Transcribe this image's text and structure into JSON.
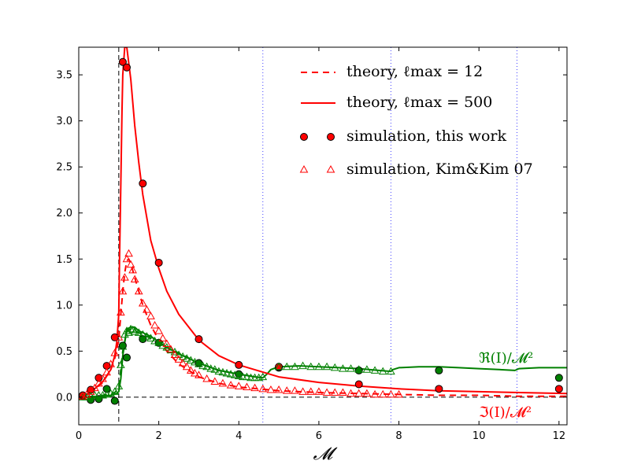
{
  "chart_data": {
    "type": "line",
    "xlabel": "𝓜",
    "ylabel": "",
    "xlim": [
      0,
      12.2
    ],
    "ylim": [
      -0.3,
      3.8
    ],
    "xticks": [
      "0",
      "2",
      "4",
      "6",
      "8",
      "10",
      "12"
    ],
    "xtick_values": [
      0,
      2,
      4,
      6,
      8,
      10,
      12
    ],
    "yticks": [
      "0.0",
      "0.5",
      "1.0",
      "1.5",
      "2.0",
      "2.5",
      "3.0",
      "3.5"
    ],
    "ytick_values": [
      0.0,
      0.5,
      1.0,
      1.5,
      2.0,
      2.5,
      3.0,
      3.5
    ],
    "reference_lines": {
      "vertical_dashed": 1.0,
      "horizontal_dashed": 0.0,
      "vertical_dotted": [
        4.6,
        7.8,
        10.95
      ]
    },
    "legend": {
      "placement": "top-right",
      "entries": [
        {
          "key": "theory_l12",
          "label": "theory, ℓmax = 12",
          "style": "dashed-line",
          "color": "#ff0000"
        },
        {
          "key": "theory_l500",
          "label": "theory, ℓmax = 500",
          "style": "solid-line",
          "color": "#ff0000"
        },
        {
          "key": "sim_this",
          "label": "simulation, this work",
          "style": "circle",
          "color": "#ff0000"
        },
        {
          "key": "sim_kim",
          "label": "simulation, Kim&Kim 07",
          "style": "triangle",
          "color": "#ff0000"
        }
      ]
    },
    "annotations": [
      {
        "text": "ℜ(I)/𝓜²",
        "color": "#008000",
        "x": 10.95,
        "y": 0.42
      },
      {
        "text": "ℑ(I)/𝓜²",
        "color": "#ff0000",
        "x": 10.95,
        "y": -0.18
      }
    ],
    "series": [
      {
        "name": "Re theory l500",
        "color": "#008000",
        "style": "solid",
        "x": [
          0,
          0.3,
          0.6,
          0.8,
          0.95,
          1.0,
          1.05,
          1.1,
          1.2,
          1.3,
          1.4,
          1.5,
          1.6,
          1.8,
          2.0,
          2.2,
          2.5,
          3.0,
          3.5,
          4.0,
          4.4,
          4.6,
          4.7,
          4.8,
          5.0,
          5.5,
          6.0,
          6.5,
          7.0,
          7.5,
          7.8,
          7.85,
          8.0,
          8.5,
          9.0,
          9.5,
          10.0,
          10.5,
          10.9,
          11.0,
          11.5,
          12.2
        ],
        "y": [
          0.0,
          0.0,
          0.01,
          0.02,
          0.04,
          0.06,
          0.2,
          0.45,
          0.74,
          0.76,
          0.76,
          0.72,
          0.7,
          0.66,
          0.6,
          0.54,
          0.47,
          0.37,
          0.29,
          0.25,
          0.22,
          0.21,
          0.25,
          0.3,
          0.33,
          0.34,
          0.33,
          0.32,
          0.31,
          0.29,
          0.28,
          0.3,
          0.32,
          0.33,
          0.33,
          0.32,
          0.31,
          0.3,
          0.29,
          0.31,
          0.32,
          0.32
        ]
      },
      {
        "name": "Re theory l12",
        "color": "#008000",
        "style": "dashed",
        "x": [
          0,
          0.5,
          0.9,
          1.0,
          1.05,
          1.1,
          1.2,
          1.3,
          1.4,
          1.6,
          1.8,
          2.0,
          2.4,
          3.0,
          3.5,
          4.0,
          4.4,
          4.6
        ],
        "y": [
          0.0,
          0.01,
          0.05,
          0.1,
          0.3,
          0.5,
          0.72,
          0.74,
          0.72,
          0.68,
          0.64,
          0.58,
          0.5,
          0.37,
          0.29,
          0.25,
          0.22,
          0.21
        ]
      },
      {
        "name": "Im theory l500",
        "color": "#ff0000",
        "style": "solid",
        "x": [
          0,
          0.2,
          0.4,
          0.6,
          0.8,
          0.9,
          0.95,
          1.0,
          1.02,
          1.05,
          1.08,
          1.1,
          1.15,
          1.2,
          1.3,
          1.4,
          1.5,
          1.6,
          1.8,
          2.0,
          2.2,
          2.5,
          3.0,
          3.5,
          4.0,
          5.0,
          6.0,
          7.0,
          8.0,
          9.0,
          10.0,
          11.0,
          12.2
        ],
        "y": [
          0.0,
          0.03,
          0.09,
          0.17,
          0.3,
          0.45,
          0.6,
          0.9,
          1.5,
          2.3,
          3.1,
          3.5,
          3.8,
          3.8,
          3.45,
          2.95,
          2.55,
          2.2,
          1.7,
          1.4,
          1.15,
          0.9,
          0.62,
          0.45,
          0.35,
          0.22,
          0.16,
          0.12,
          0.09,
          0.07,
          0.06,
          0.05,
          0.04
        ]
      },
      {
        "name": "Im theory l12",
        "color": "#ff0000",
        "style": "dashed",
        "x": [
          0,
          0.3,
          0.6,
          0.8,
          0.9,
          1.0,
          1.05,
          1.1,
          1.15,
          1.2,
          1.25,
          1.3,
          1.4,
          1.5,
          1.6,
          1.8,
          2.0,
          2.2,
          2.5,
          3.0,
          3.5,
          4.0,
          4.5,
          5.0,
          6.0,
          7.0,
          8.0,
          9.0,
          10.0,
          11.0,
          12.2
        ],
        "y": [
          0.0,
          0.05,
          0.16,
          0.3,
          0.42,
          0.62,
          0.9,
          1.15,
          1.35,
          1.48,
          1.5,
          1.45,
          1.3,
          1.15,
          1.0,
          0.78,
          0.62,
          0.5,
          0.36,
          0.22,
          0.15,
          0.11,
          0.09,
          0.07,
          0.05,
          0.04,
          0.03,
          0.02,
          0.02,
          0.01,
          0.01
        ]
      },
      {
        "name": "Re simulation this work",
        "color": "#008000",
        "marker": "circle",
        "x": [
          0.1,
          0.3,
          0.5,
          0.7,
          0.9,
          1.1,
          1.2,
          1.6,
          2.0,
          3.0,
          4.0,
          5.0,
          7.0,
          9.0,
          12.0
        ],
        "y": [
          0.01,
          -0.03,
          -0.02,
          0.09,
          -0.04,
          0.56,
          0.43,
          0.63,
          0.59,
          0.37,
          0.25,
          0.32,
          0.29,
          0.29,
          0.21
        ]
      },
      {
        "name": "Im simulation this work",
        "color": "#ff0000",
        "marker": "circle",
        "x": [
          0.1,
          0.3,
          0.5,
          0.7,
          0.9,
          1.1,
          1.2,
          1.6,
          2.0,
          3.0,
          4.0,
          5.0,
          7.0,
          9.0,
          12.0
        ],
        "y": [
          0.02,
          0.08,
          0.21,
          0.34,
          0.65,
          3.64,
          3.58,
          2.32,
          1.46,
          0.63,
          0.35,
          0.33,
          0.14,
          0.09,
          0.09
        ]
      },
      {
        "name": "Re simulation Kim&Kim 07",
        "color": "#008000",
        "marker": "triangle",
        "x": [
          0.1,
          0.2,
          0.3,
          0.4,
          0.5,
          0.6,
          0.7,
          0.8,
          0.9,
          1.0,
          1.05,
          1.1,
          1.15,
          1.2,
          1.25,
          1.3,
          1.35,
          1.4,
          1.5,
          1.6,
          1.7,
          1.8,
          1.9,
          2.0,
          2.1,
          2.2,
          2.3,
          2.4,
          2.5,
          2.6,
          2.7,
          2.8,
          2.9,
          3.0,
          3.1,
          3.2,
          3.3,
          3.4,
          3.5,
          3.6,
          3.7,
          3.8,
          3.9,
          4.0,
          4.1,
          4.2,
          4.3,
          4.4,
          4.5,
          4.6,
          5.0,
          5.2,
          5.4,
          5.6,
          5.8,
          6.0,
          6.2,
          6.4,
          6.6,
          6.8,
          7.0,
          7.2,
          7.4,
          7.6,
          7.8
        ],
        "y": [
          0.0,
          0.0,
          0.01,
          0.02,
          0.02,
          0.02,
          0.03,
          0.04,
          0.06,
          0.12,
          0.35,
          0.55,
          0.68,
          0.72,
          0.7,
          0.74,
          0.73,
          0.71,
          0.7,
          0.68,
          0.66,
          0.64,
          0.61,
          0.59,
          0.56,
          0.54,
          0.51,
          0.49,
          0.46,
          0.44,
          0.42,
          0.4,
          0.38,
          0.36,
          0.34,
          0.33,
          0.31,
          0.3,
          0.28,
          0.27,
          0.26,
          0.25,
          0.24,
          0.23,
          0.22,
          0.22,
          0.21,
          0.21,
          0.21,
          0.22,
          0.33,
          0.33,
          0.33,
          0.34,
          0.33,
          0.33,
          0.33,
          0.32,
          0.31,
          0.31,
          0.3,
          0.3,
          0.29,
          0.28,
          0.28
        ]
      },
      {
        "name": "Im simulation Kim&Kim 07",
        "color": "#ff0000",
        "marker": "triangle",
        "x": [
          0.1,
          0.2,
          0.3,
          0.4,
          0.5,
          0.6,
          0.7,
          0.8,
          0.9,
          1.0,
          1.05,
          1.1,
          1.15,
          1.2,
          1.25,
          1.3,
          1.35,
          1.4,
          1.5,
          1.6,
          1.7,
          1.8,
          1.9,
          2.0,
          2.1,
          2.2,
          2.3,
          2.4,
          2.5,
          2.6,
          2.7,
          2.8,
          2.9,
          3.0,
          3.2,
          3.4,
          3.6,
          3.8,
          4.0,
          4.2,
          4.4,
          4.6,
          4.8,
          5.0,
          5.2,
          5.4,
          5.6,
          5.8,
          6.0,
          6.2,
          6.4,
          6.6,
          6.8,
          7.0,
          7.2,
          7.4,
          7.6,
          7.8,
          8.0
        ],
        "y": [
          0.01,
          0.03,
          0.06,
          0.1,
          0.15,
          0.2,
          0.27,
          0.36,
          0.48,
          0.65,
          0.92,
          1.15,
          1.3,
          1.5,
          1.56,
          1.44,
          1.38,
          1.28,
          1.15,
          1.02,
          0.95,
          0.88,
          0.78,
          0.72,
          0.64,
          0.58,
          0.52,
          0.46,
          0.41,
          0.37,
          0.33,
          0.29,
          0.26,
          0.24,
          0.2,
          0.17,
          0.15,
          0.13,
          0.12,
          0.11,
          0.1,
          0.09,
          0.08,
          0.08,
          0.07,
          0.07,
          0.06,
          0.06,
          0.06,
          0.05,
          0.05,
          0.05,
          0.04,
          0.04,
          0.04,
          0.03,
          0.03,
          0.03,
          0.03
        ]
      }
    ]
  }
}
